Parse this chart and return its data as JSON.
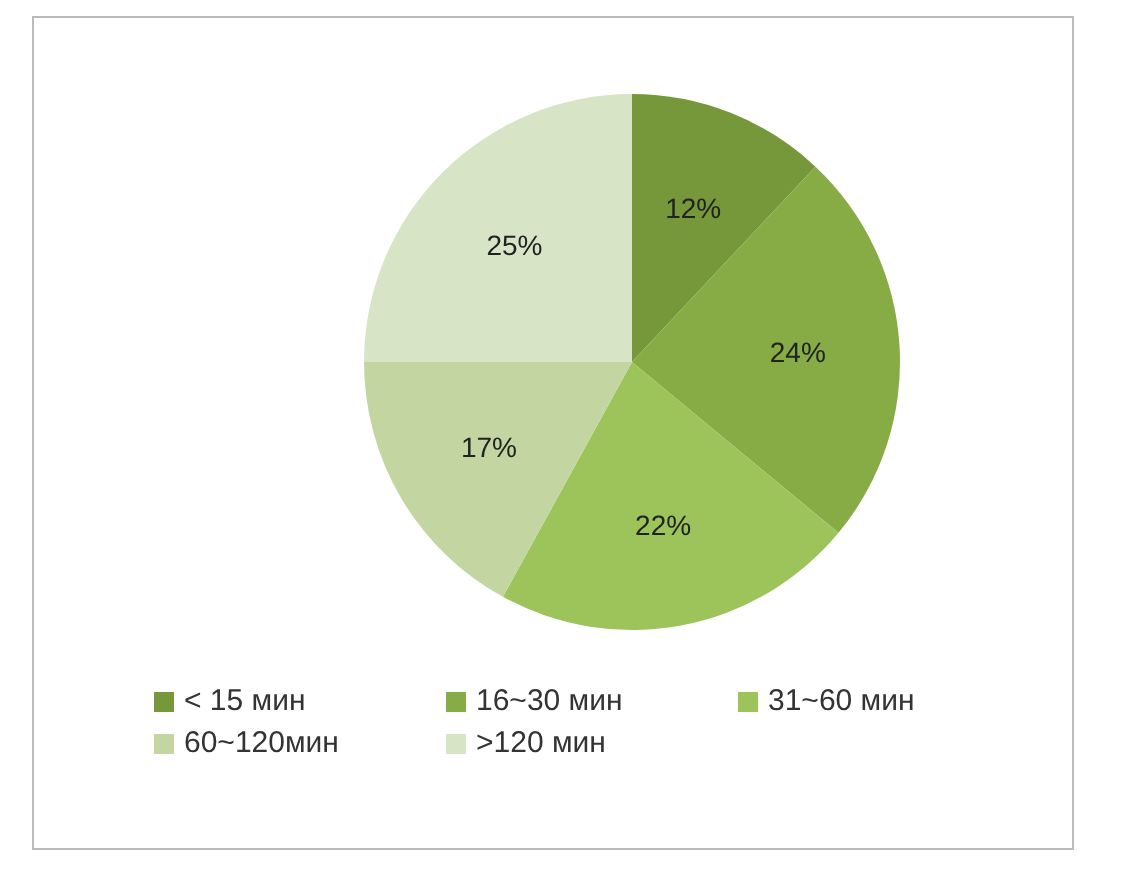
{
  "chart_data": {
    "type": "pie",
    "categories": [
      "< 15 мин",
      "16~30 мин",
      "31~60 мин",
      "60~120мин",
      ">120 мин"
    ],
    "values": [
      12,
      24,
      22,
      17,
      25
    ],
    "colors": [
      "#76973a",
      "#87ab45",
      "#9cc45a",
      "#c3d6a2",
      "#d8e4c6"
    ],
    "value_labels": [
      "12%",
      "24%",
      "22%",
      "17%",
      "25%"
    ],
    "legend": "bottom"
  }
}
